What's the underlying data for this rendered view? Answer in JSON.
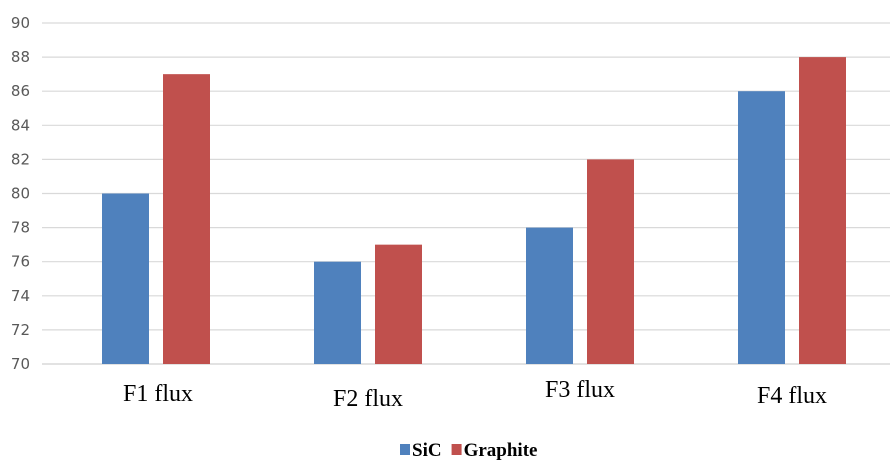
{
  "chart_data": {
    "type": "bar",
    "categories": [
      "F1 flux",
      "F2 flux",
      "F3 flux",
      "F4 flux"
    ],
    "series": [
      {
        "name": "SiC",
        "values": [
          80,
          76,
          78,
          86
        ],
        "color": "#4f81bd"
      },
      {
        "name": "Graphite",
        "values": [
          87,
          77,
          82,
          88
        ],
        "color": "#c0504d"
      }
    ],
    "ylim": [
      70,
      90
    ],
    "yticks": [
      "70",
      "72",
      "74",
      "76",
      "78",
      "80",
      "82",
      "84",
      "86",
      "88",
      "90"
    ],
    "title": "",
    "xlabel": "",
    "ylabel": "",
    "grid": true,
    "legend_position": "bottom-center"
  }
}
